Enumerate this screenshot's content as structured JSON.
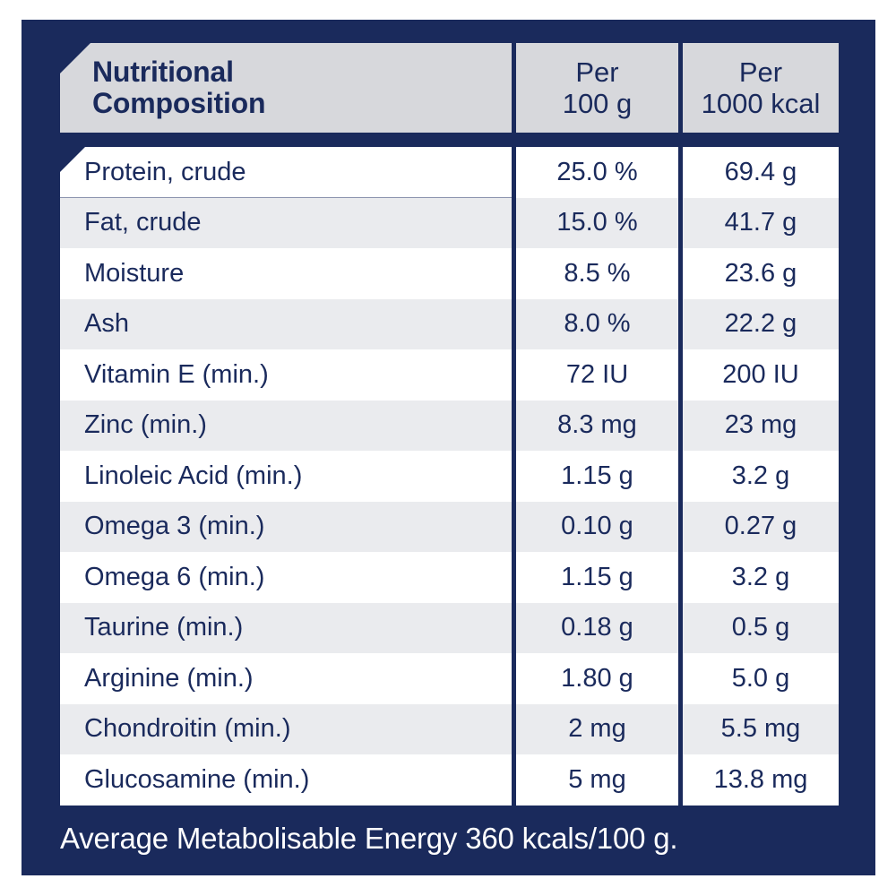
{
  "colors": {
    "navy": "#1a2a5c",
    "header_gray": "#d7d8dc",
    "row_alt_gray": "#eaebee",
    "row_white": "#ffffff",
    "text_navy": "#1a2a5c",
    "footer_text": "#ffffff",
    "page_bg": "#ffffff"
  },
  "table": {
    "title": "Nutritional\nComposition",
    "columns": [
      {
        "id": "per_100g",
        "label": "Per\n100 g"
      },
      {
        "id": "per_1000kcal",
        "label": "Per\n1000 kcal"
      }
    ],
    "rows": [
      {
        "label": "Protein, crude",
        "per_100g": "25.0 %",
        "per_1000kcal": "69.4 g"
      },
      {
        "label": "Fat, crude",
        "per_100g": "15.0 %",
        "per_1000kcal": "41.7 g"
      },
      {
        "label": "Moisture",
        "per_100g": "8.5 %",
        "per_1000kcal": "23.6 g"
      },
      {
        "label": "Ash",
        "per_100g": "8.0 %",
        "per_1000kcal": "22.2 g"
      },
      {
        "label": "Vitamin E (min.)",
        "per_100g": "72 IU",
        "per_1000kcal": "200 IU"
      },
      {
        "label": "Zinc (min.)",
        "per_100g": "8.3 mg",
        "per_1000kcal": "23 mg"
      },
      {
        "label": "Linoleic Acid (min.)",
        "per_100g": "1.15 g",
        "per_1000kcal": "3.2 g"
      },
      {
        "label": "Omega 3 (min.)",
        "per_100g": "0.10 g",
        "per_1000kcal": "0.27 g"
      },
      {
        "label": "Omega 6 (min.)",
        "per_100g": "1.15 g",
        "per_1000kcal": "3.2 g"
      },
      {
        "label": "Taurine (min.)",
        "per_100g": "0.18 g",
        "per_1000kcal": "0.5 g"
      },
      {
        "label": "Arginine (min.)",
        "per_100g": "1.80 g",
        "per_1000kcal": "5.0 g"
      },
      {
        "label": "Chondroitin (min.)",
        "per_100g": "2 mg",
        "per_1000kcal": "5.5 mg"
      },
      {
        "label": "Glucosamine (min.)",
        "per_100g": "5 mg",
        "per_1000kcal": "13.8 mg"
      }
    ],
    "footer": "Average Metabolisable Energy 360 kcals/100 g."
  }
}
